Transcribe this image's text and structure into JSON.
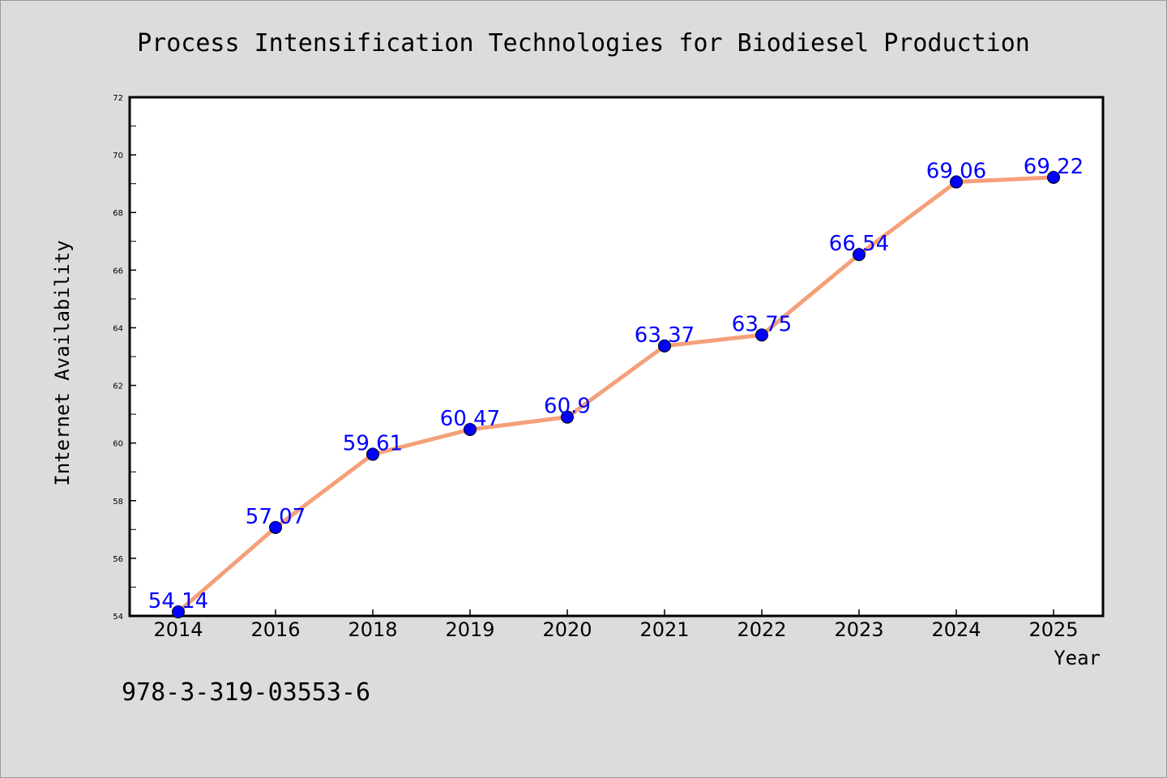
{
  "chart_data": {
    "type": "line",
    "title": "Process Intensification Technologies for Biodiesel Production",
    "xlabel": "Year",
    "ylabel": "Internet Availability",
    "categories": [
      "2014",
      "2016",
      "2018",
      "2019",
      "2020",
      "2021",
      "2022",
      "2023",
      "2024",
      "2025"
    ],
    "series": [
      {
        "values": [
          54.14,
          57.07,
          59.61,
          60.47,
          60.9,
          63.37,
          63.75,
          66.54,
          69.06,
          69.22
        ],
        "data_labels": [
          "54.14",
          "57.07",
          "59.61",
          "60.47",
          "60.9",
          "63.37",
          "63.75",
          "66.54",
          "69.06",
          "69.22"
        ],
        "line_color": "#f4a07a",
        "marker_color": "#0000ff"
      }
    ],
    "ylim": [
      54,
      72
    ],
    "yticks": [
      "54",
      "56",
      "58",
      "60",
      "62",
      "64",
      "66",
      "68",
      "70",
      "72"
    ],
    "grid": false,
    "legend": "none"
  },
  "footer": {
    "code": "978-3-319-03553-6"
  },
  "colors": {
    "background": "#dcdcdc",
    "plot_background": "#ffffff",
    "line": "#f4a07a",
    "marker": "#0000ff",
    "data_label": "#0000ff"
  }
}
